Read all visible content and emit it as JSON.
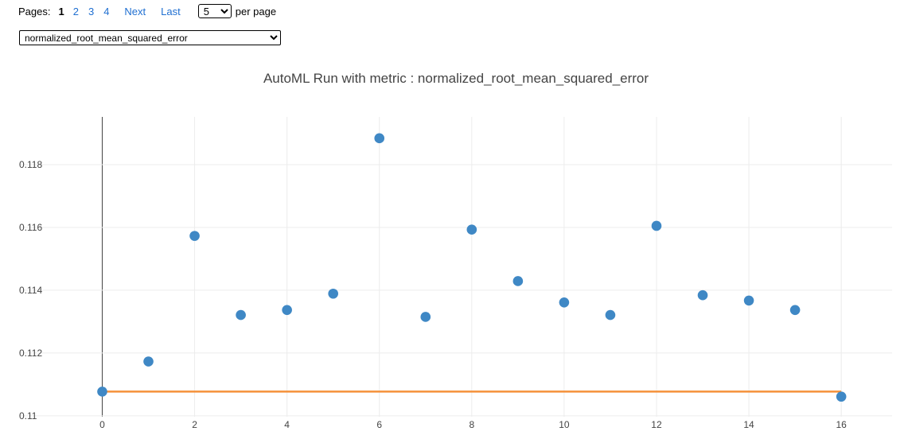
{
  "pager": {
    "label": "Pages:",
    "current": "1",
    "pages": [
      "2",
      "3",
      "4"
    ],
    "next": "Next",
    "last": "Last",
    "per_page_value": "5",
    "per_page_text": "per page"
  },
  "metric_select": {
    "value": "normalized_root_mean_squared_error"
  },
  "chart_data": {
    "type": "scatter",
    "title": "AutoML Run with metric : normalized_root_mean_squared_error",
    "xlabel": "",
    "ylabel": "",
    "x": [
      0,
      1,
      2,
      3,
      4,
      5,
      6,
      7,
      8,
      9,
      10,
      11,
      12,
      13,
      14,
      15,
      16
    ],
    "y": [
      0.11077,
      0.11173,
      0.11573,
      0.11321,
      0.11337,
      0.11389,
      0.11884,
      0.11315,
      0.11593,
      0.11429,
      0.11361,
      0.11321,
      0.11605,
      0.11384,
      0.11367,
      0.11337,
      0.11061
    ],
    "best_line": {
      "x": [
        0,
        16
      ],
      "y": [
        0.11077,
        0.11077
      ]
    },
    "xticks": [
      0,
      2,
      4,
      6,
      8,
      10,
      12,
      14,
      16
    ],
    "yticks": [
      0.11,
      0.112,
      0.114,
      0.116,
      0.118
    ],
    "ytick_labels": [
      "0.11",
      "0.112",
      "0.114",
      "0.116",
      "0.118"
    ],
    "xlim": [
      -1.8,
      17.1
    ],
    "ylim": [
      0.10997,
      0.11952
    ],
    "grid": true,
    "colors": {
      "points": "#3f88c5",
      "best_line": "#f5913a",
      "grid": "#ececec",
      "zero_line": "#444444"
    }
  }
}
